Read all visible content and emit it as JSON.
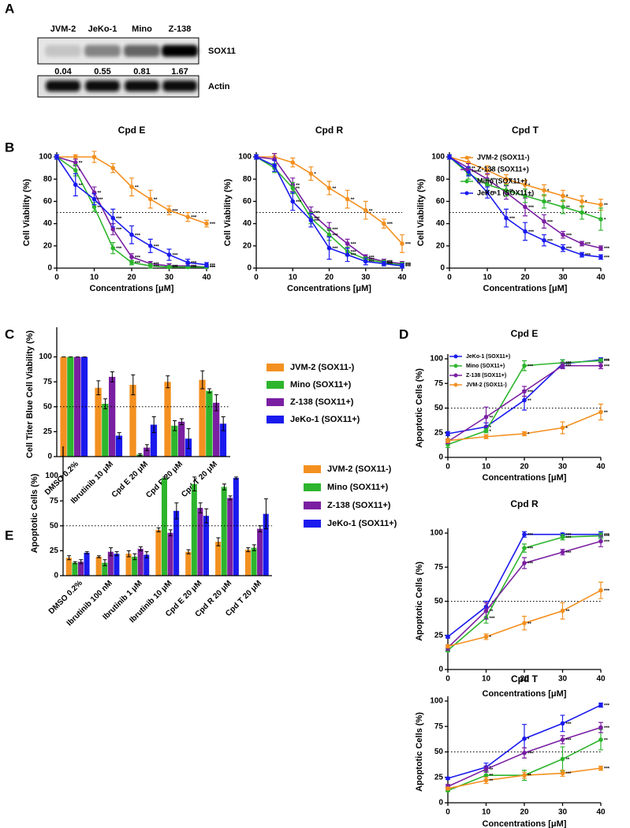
{
  "panel_labels": [
    "A",
    "B",
    "C",
    "D",
    "E"
  ],
  "blot": {
    "lanes": [
      "JVM-2",
      "JeKo-1",
      "Mino",
      "Z-138"
    ],
    "quant": [
      0.04,
      0.55,
      0.81,
      1.67
    ],
    "proteins": [
      "SOX11",
      "Actin"
    ]
  },
  "chart_data": [
    {
      "type": "line",
      "title": "Cpd E",
      "xlabel": "Concentrations [μM]",
      "ylabel": "Cell Viability (%)",
      "x": [
        0,
        5,
        10,
        15,
        20,
        25,
        30,
        35,
        40
      ],
      "xlim": [
        0,
        40
      ],
      "xticks": [
        0,
        10,
        20,
        30,
        40
      ],
      "ylim": [
        0,
        100
      ],
      "yticks": [
        0,
        20,
        40,
        60,
        80,
        100
      ],
      "refline": 50,
      "series": [
        {
          "color": "#f39020",
          "values": [
            100,
            100,
            100,
            90,
            73,
            62,
            52,
            46,
            40
          ],
          "errors": [
            2,
            2,
            5,
            4,
            8,
            8,
            4,
            4,
            3
          ],
          "sig": [
            null,
            null,
            null,
            null,
            "**",
            "**",
            "***",
            "***",
            "***"
          ]
        },
        {
          "color": "#7a1fa2",
          "values": [
            100,
            95,
            68,
            35,
            10,
            4,
            2,
            2,
            1
          ],
          "errors": [
            2,
            3,
            5,
            5,
            3,
            2,
            2,
            2,
            1
          ],
          "sig": [
            null,
            "**",
            "**",
            "***",
            "***",
            "***",
            "***",
            "***",
            "***"
          ]
        },
        {
          "color": "#2db52d",
          "values": [
            100,
            88,
            55,
            18,
            5,
            2,
            1,
            1,
            1
          ],
          "errors": [
            2,
            5,
            4,
            5,
            2,
            2,
            1,
            1,
            1
          ],
          "sig": [
            null,
            "*",
            "**",
            "***",
            "***",
            "***",
            "***",
            "***",
            "***"
          ]
        },
        {
          "color": "#1a1aee",
          "values": [
            100,
            75,
            62,
            45,
            30,
            20,
            12,
            5,
            3
          ],
          "errors": [
            2,
            10,
            5,
            8,
            8,
            6,
            5,
            3,
            2
          ],
          "sig": [
            null,
            "**",
            "***",
            "***",
            "***",
            "***",
            "***",
            "***",
            "***"
          ]
        }
      ]
    },
    {
      "type": "line",
      "title": "Cpd R",
      "xlabel": "Concentrations [μM]",
      "ylabel": "Cell Viability (%)",
      "x": [
        0,
        5,
        10,
        15,
        20,
        25,
        30,
        35,
        40
      ],
      "xlim": [
        0,
        40
      ],
      "xticks": [
        0,
        10,
        20,
        30,
        40
      ],
      "ylim": [
        0,
        100
      ],
      "yticks": [
        0,
        20,
        40,
        60,
        80,
        100
      ],
      "refline": 50,
      "series": [
        {
          "color": "#f39020",
          "values": [
            100,
            100,
            95,
            85,
            72,
            62,
            52,
            40,
            22
          ],
          "errors": [
            2,
            3,
            4,
            6,
            6,
            8,
            8,
            4,
            8
          ],
          "sig": [
            null,
            null,
            null,
            "*",
            "**",
            "**",
            "**",
            "***",
            "***"
          ]
        },
        {
          "color": "#7a1fa2",
          "values": [
            100,
            98,
            75,
            50,
            35,
            22,
            10,
            6,
            4
          ],
          "errors": [
            2,
            5,
            6,
            5,
            6,
            4,
            2,
            2,
            2
          ],
          "sig": [
            null,
            null,
            "**",
            "***",
            "***",
            "***",
            "***",
            "***",
            "***"
          ]
        },
        {
          "color": "#2db52d",
          "values": [
            100,
            90,
            72,
            45,
            30,
            15,
            8,
            5,
            3
          ],
          "errors": [
            2,
            4,
            5,
            5,
            5,
            4,
            2,
            2,
            2
          ],
          "sig": [
            null,
            null,
            "**",
            "***",
            "***",
            "***",
            "***",
            "***",
            "***"
          ]
        },
        {
          "color": "#1a1aee",
          "values": [
            100,
            92,
            60,
            43,
            18,
            12,
            6,
            4,
            2
          ],
          "errors": [
            2,
            5,
            8,
            6,
            10,
            6,
            3,
            2,
            2
          ],
          "sig": [
            null,
            null,
            "***",
            "***",
            "***",
            "***",
            "***",
            "***",
            "***"
          ]
        }
      ]
    },
    {
      "type": "line",
      "title": "Cpd T",
      "xlabel": "Concentrations [μM]",
      "ylabel": "Cell Viability (%)",
      "x": [
        0,
        5,
        10,
        15,
        20,
        25,
        30,
        35,
        40
      ],
      "xlim": [
        0,
        40
      ],
      "xticks": [
        0,
        10,
        20,
        30,
        40
      ],
      "ylim": [
        0,
        100
      ],
      "yticks": [
        0,
        20,
        40,
        60,
        80,
        100
      ],
      "refline": 50,
      "legend": true,
      "series": [
        {
          "name": "JVM-2 (SOX11-)",
          "color": "#f39020",
          "values": [
            100,
            95,
            88,
            80,
            75,
            70,
            65,
            60,
            57
          ],
          "errors": [
            2,
            5,
            4,
            4,
            4,
            5,
            5,
            5,
            5
          ],
          "sig": [
            null,
            null,
            "*",
            "*",
            "*",
            "*",
            "*",
            "*",
            "**"
          ]
        },
        {
          "name": "Z-138 (SOX11+)",
          "color": "#7a1fa2",
          "values": [
            100,
            90,
            80,
            68,
            55,
            42,
            30,
            22,
            18
          ],
          "errors": [
            2,
            4,
            5,
            6,
            8,
            6,
            3,
            2,
            2
          ],
          "sig": [
            null,
            "**",
            "***",
            "***",
            "***",
            "***",
            "***",
            "***",
            "***"
          ]
        },
        {
          "name": "Mino (SOX11+)",
          "color": "#2db52d",
          "values": [
            100,
            85,
            75,
            70,
            65,
            60,
            55,
            50,
            44
          ],
          "errors": [
            2,
            5,
            5,
            5,
            6,
            6,
            6,
            6,
            10
          ],
          "sig": [
            null,
            null,
            "*",
            "**",
            "**",
            "**",
            "**",
            "*",
            "*"
          ]
        },
        {
          "name": "JeKo-1 (SOX11+)",
          "color": "#1a1aee",
          "values": [
            100,
            87,
            68,
            45,
            33,
            25,
            18,
            12,
            10
          ],
          "errors": [
            2,
            4,
            5,
            8,
            8,
            5,
            3,
            2,
            2
          ],
          "sig": [
            null,
            "***",
            "***",
            "***",
            "***",
            "***",
            "***",
            "***",
            "***"
          ]
        }
      ]
    },
    {
      "type": "bar",
      "ylabel": "Cell Titer Blue Cell Viability (%)",
      "categories": [
        "DMSO 0.2%",
        "Ibrutinib 10 μM",
        "Cpd E 20 μM",
        "Cpd R 20 μM",
        "Cpd T 20 μM"
      ],
      "ylim": [
        0,
        125
      ],
      "yticks": [
        0,
        25,
        50,
        75,
        100
      ],
      "refline": 50,
      "legend": true,
      "series": [
        {
          "name": "JVM-2 (SOX11-)",
          "color": "#f39020",
          "values": [
            100,
            69,
            72,
            75,
            77
          ],
          "errors": [
            0,
            7,
            10,
            6,
            9
          ]
        },
        {
          "name": "Mino (SOX11+)",
          "color": "#2db52d",
          "values": [
            100,
            53,
            2,
            31,
            66
          ],
          "errors": [
            0,
            5,
            1,
            5,
            2
          ]
        },
        {
          "name": "Z-138 (SOX11+)",
          "color": "#7a1fa2",
          "values": [
            100,
            80,
            9,
            35,
            54
          ],
          "errors": [
            0,
            5,
            3,
            3,
            8
          ]
        },
        {
          "name": "JeKo-1 (SOX11+)",
          "color": "#1a1aee",
          "values": [
            100,
            21,
            32,
            18,
            33
          ],
          "errors": [
            0,
            3,
            8,
            10,
            7
          ]
        }
      ]
    },
    {
      "type": "line",
      "title": "Cpd E",
      "xlabel": "Concentrations [μM]",
      "ylabel": "Apoptotic Cells (%)",
      "x": [
        0,
        10,
        20,
        30,
        40
      ],
      "xlim": [
        0,
        40
      ],
      "xticks": [
        0,
        10,
        20,
        30,
        40
      ],
      "ylim": [
        0,
        100
      ],
      "yticks": [
        0,
        25,
        50,
        75,
        100
      ],
      "refline": 50,
      "legend": true,
      "series": [
        {
          "name": "JeKo-1 (SOX11+)",
          "color": "#1a1aee",
          "values": [
            24,
            31,
            58,
            95,
            99
          ],
          "errors": [
            2,
            4,
            10,
            4,
            2
          ],
          "sig": [
            null,
            "*",
            "**",
            "***",
            "***"
          ]
        },
        {
          "name": "Mino (SOX11+)",
          "color": "#2db52d",
          "values": [
            13,
            27,
            93,
            96,
            98
          ],
          "errors": [
            3,
            2,
            5,
            3,
            2
          ],
          "sig": [
            null,
            "*",
            "***",
            "***",
            "***"
          ]
        },
        {
          "name": "Z-138 (SOX11+)",
          "color": "#7a1fa2",
          "values": [
            16,
            41,
            67,
            93,
            93
          ],
          "errors": [
            2,
            10,
            5,
            3,
            3
          ],
          "sig": [
            null,
            "**",
            "***",
            "***",
            "***"
          ]
        },
        {
          "name": "JVM-2 (SOX11-)",
          "color": "#f39020",
          "values": [
            17,
            21,
            24,
            30,
            46
          ],
          "errors": [
            2,
            2,
            2,
            6,
            8
          ],
          "sig": [
            null,
            null,
            "*",
            "*",
            "**"
          ]
        }
      ]
    },
    {
      "type": "line",
      "title": "Cpd R",
      "xlabel": "Concentrations [μM]",
      "ylabel": "Apoptotic Cells (%)",
      "x": [
        0,
        10,
        20,
        30,
        40
      ],
      "xlim": [
        0,
        40
      ],
      "xticks": [
        0,
        10,
        20,
        30,
        40
      ],
      "ylim": [
        0,
        100
      ],
      "yticks": [
        0,
        25,
        50,
        75,
        100
      ],
      "refline": 50,
      "series": [
        {
          "color": "#1a1aee",
          "values": [
            24,
            46,
            99,
            99,
            99
          ],
          "errors": [
            1,
            4,
            2,
            1,
            2
          ],
          "sig": [
            null,
            "**",
            "***",
            "***",
            "***"
          ]
        },
        {
          "color": "#2db52d",
          "values": [
            14,
            38,
            89,
            97,
            98
          ],
          "errors": [
            1,
            4,
            3,
            2,
            2
          ],
          "sig": [
            null,
            "***",
            "***",
            "***",
            "***"
          ]
        },
        {
          "color": "#7a1fa2",
          "values": [
            16,
            43,
            78,
            86,
            94
          ],
          "errors": [
            2,
            6,
            4,
            2,
            4
          ],
          "sig": [
            null,
            "**",
            "***",
            "***",
            "***"
          ]
        },
        {
          "color": "#f39020",
          "values": [
            17,
            24,
            34,
            43,
            58
          ],
          "errors": [
            1,
            2,
            5,
            6,
            6
          ],
          "sig": [
            null,
            "*",
            "**",
            "**",
            "***"
          ]
        }
      ]
    },
    {
      "type": "line",
      "title": "Cpd T",
      "xlabel": "Concentrations [μM]",
      "ylabel": "Apoptotic Cells (%)",
      "x": [
        0,
        10,
        20,
        30,
        40
      ],
      "xlim": [
        0,
        40
      ],
      "xticks": [
        0,
        10,
        20,
        30,
        40
      ],
      "ylim": [
        0,
        100
      ],
      "yticks": [
        0,
        25,
        50,
        75,
        100
      ],
      "refline": 50,
      "series": [
        {
          "color": "#1a1aee",
          "values": [
            24,
            35,
            63,
            78,
            96
          ],
          "errors": [
            1,
            4,
            14,
            8,
            2
          ],
          "sig": [
            null,
            "*",
            "*",
            "***",
            "***"
          ]
        },
        {
          "color": "#2db52d",
          "values": [
            12,
            27,
            27,
            43,
            62
          ],
          "errors": [
            1,
            4,
            5,
            12,
            10
          ],
          "sig": [
            null,
            "**",
            "**",
            "**",
            "**"
          ]
        },
        {
          "color": "#7a1fa2",
          "values": [
            16,
            33,
            49,
            62,
            74
          ],
          "errors": [
            2,
            3,
            5,
            4,
            5
          ],
          "sig": [
            null,
            "**",
            "***",
            "***",
            "***"
          ]
        },
        {
          "color": "#f39020",
          "values": [
            14,
            22,
            27,
            29,
            34
          ],
          "errors": [
            1,
            3,
            3,
            3,
            2
          ],
          "sig": [
            null,
            "**",
            "**",
            "***",
            "***"
          ]
        }
      ]
    },
    {
      "type": "bar",
      "ylabel": "Apoptotic Cells (%)",
      "categories": [
        "DMSO 0.2%",
        "Ibrutinib 100 nM",
        "Ibrutinib 1 μM",
        "Ibrutinib 10 μM",
        "Cpd E 20 μM",
        "Cpd R 20 μM",
        "Cpd T 20 μM"
      ],
      "ylim": [
        0,
        125
      ],
      "yticks": [
        0,
        25,
        50,
        75,
        100
      ],
      "refline": 50,
      "legend": true,
      "series": [
        {
          "name": "JVM-2 (SOX11-)",
          "color": "#f39020",
          "values": [
            18,
            19,
            22,
            46,
            24,
            34,
            26
          ],
          "errors": [
            2,
            1,
            3,
            2,
            2,
            4,
            2
          ]
        },
        {
          "name": "Mino (SOX11+)",
          "color": "#2db52d",
          "values": [
            13,
            13,
            19,
            98,
            92,
            89,
            28
          ],
          "errors": [
            1,
            3,
            3,
            1,
            7,
            3,
            3
          ]
        },
        {
          "name": "Z-138 (SOX11+)",
          "color": "#7a1fa2",
          "values": [
            14,
            24,
            27,
            43,
            68,
            78,
            47
          ],
          "errors": [
            2,
            4,
            2,
            3,
            5,
            2,
            3
          ]
        },
        {
          "name": "JeKo-1 (SOX11+)",
          "color": "#1a1aee",
          "values": [
            23,
            22,
            21,
            65,
            60,
            98,
            62
          ],
          "errors": [
            1,
            2,
            3,
            8,
            7,
            1,
            15
          ]
        }
      ]
    }
  ]
}
